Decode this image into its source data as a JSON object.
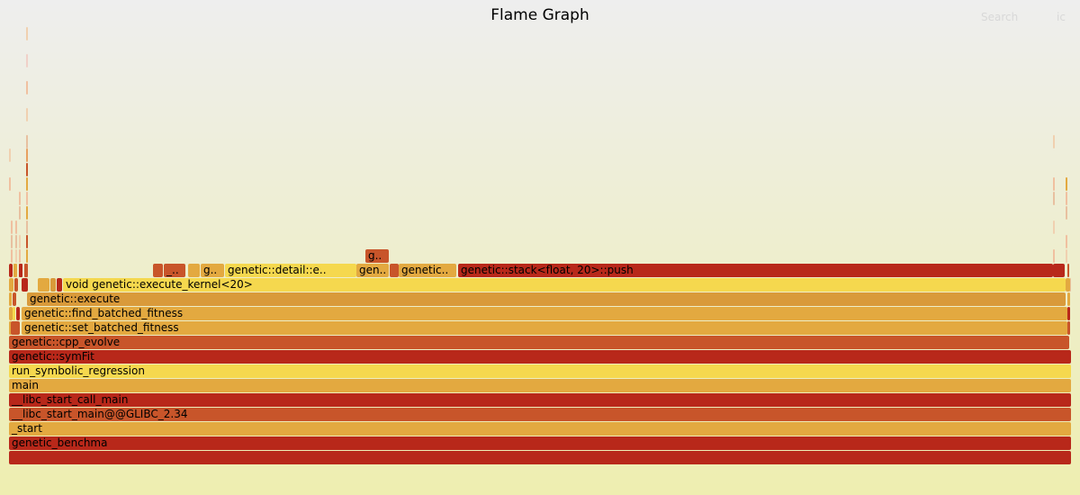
{
  "header": {
    "title": "Flame Graph",
    "search_label": "Search",
    "ic_label": "ic"
  },
  "frames": [
    {
      "label": "",
      "color": "#b8281a"
    },
    {
      "label": "genetic_benchma",
      "color": "#b8281a"
    },
    {
      "label": "_start",
      "color": "#e3a940"
    },
    {
      "label": "__libc_start_main@@GLIBC_2.34",
      "color": "#c8552a"
    },
    {
      "label": "__libc_start_call_main",
      "color": "#b8281a"
    },
    {
      "label": "main",
      "color": "#e3a940"
    },
    {
      "label": "run_symbolic_regression",
      "color": "#f5d84e"
    },
    {
      "label": "genetic::symFit",
      "color": "#b8281a"
    },
    {
      "label": "genetic::cpp_evolve",
      "color": "#c8552a"
    },
    {
      "label": "genetic::set_batched_fitness",
      "color": "#e3a940"
    },
    {
      "label": "genetic::find_batched_fitness",
      "color": "#e3a940"
    },
    {
      "label": "genetic::execute",
      "color": "#d99a3a"
    },
    {
      "label": "void genetic::execute_kernel<20>",
      "color": "#f5d84e"
    },
    {
      "label": "genetic::stack<float, 20>::push",
      "color": "#b8281a"
    },
    {
      "label": "genetic..",
      "color": "#e3a940"
    },
    {
      "label": "gen..",
      "color": "#e3a940"
    },
    {
      "label": "genetic::detail::e..",
      "color": "#f5d84e"
    },
    {
      "label": "g..",
      "color": "#e3a940"
    },
    {
      "label": "_..",
      "color": "#c8552a"
    },
    {
      "label": "g..",
      "color": "#c8552a"
    },
    {
      "label": "",
      "color": "#b8281a"
    },
    {
      "label": "",
      "color": "#c8552a"
    },
    {
      "label": "",
      "color": "#e3a940"
    },
    {
      "label": "",
      "color": "#b8281a"
    },
    {
      "label": "",
      "color": "#e3a940"
    },
    {
      "label": "",
      "color": "#d99a3a"
    },
    {
      "label": "",
      "color": "#c8552a"
    },
    {
      "label": "",
      "color": "#e3a940"
    },
    {
      "label": "",
      "color": "#c8552a"
    },
    {
      "label": "",
      "color": "#e3a940"
    },
    {
      "label": "",
      "color": "#f5d84e"
    },
    {
      "label": "",
      "color": "#b8281a"
    },
    {
      "label": "",
      "color": "#e3a940"
    },
    {
      "label": "",
      "color": "#c8552a"
    },
    {
      "label": "",
      "color": "#b8281a"
    },
    {
      "label": "",
      "color": "#e3a940"
    },
    {
      "label": "",
      "color": "#c8552a"
    },
    {
      "label": "",
      "color": "#e3a940"
    },
    {
      "label": "",
      "color": "#b8281a"
    },
    {
      "label": "",
      "color": "#c8552a"
    },
    {
      "label": "",
      "color": "#e3a940"
    },
    {
      "label": "",
      "color": "#b8281a"
    }
  ]
}
